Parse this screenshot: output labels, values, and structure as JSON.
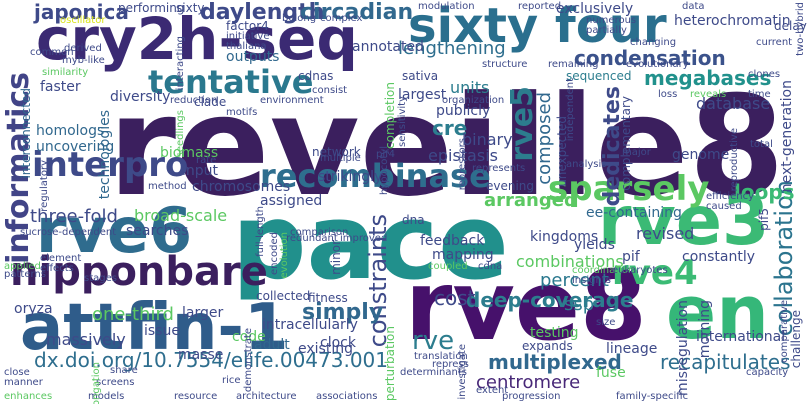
{
  "words": [
    {
      "text": "reveille8",
      "color": "#3b1f5e"
    },
    {
      "text": "pace",
      "color": "#21908c"
    },
    {
      "text": "rve8",
      "color": "#46116b"
    },
    {
      "text": "attfin-1",
      "color": "#2f5c8a"
    },
    {
      "text": "cry2h-seq",
      "color": "#3b2a73"
    },
    {
      "text": "sixty four",
      "color": "#2a6f8e"
    },
    {
      "text": "en",
      "color": "#35b779"
    },
    {
      "text": "rve3",
      "color": "#3bba75"
    },
    {
      "text": "rve6",
      "color": "#2f6c8e"
    },
    {
      "text": "interpro",
      "color": "#3e4a89"
    },
    {
      "text": "nipponbare",
      "color": "#3b1f5e"
    },
    {
      "text": "recombinase",
      "color": "#2e6e8e"
    },
    {
      "text": "tentative",
      "color": "#2a788e"
    },
    {
      "text": "sparsely",
      "color": "#5bc862"
    },
    {
      "text": "informatics",
      "color": "#414487"
    },
    {
      "text": "rve4",
      "color": "#3bbb75"
    },
    {
      "text": "rve5",
      "color": "#2c7d8e"
    },
    {
      "text": "collaboration",
      "color": "#2b748e"
    },
    {
      "text": "condensation",
      "color": "#3b528b"
    },
    {
      "text": "daylength",
      "color": "#3e4a89"
    },
    {
      "text": "circadian",
      "color": "#31688e"
    },
    {
      "text": "japonica",
      "color": "#3e4a89"
    },
    {
      "text": "dx.doi.org/10.7554/elife.00473.001",
      "color": "#2e6e8e"
    },
    {
      "text": "multiplexed",
      "color": "#31688e"
    },
    {
      "text": "deep-coverage",
      "color": "#2c7d8e"
    },
    {
      "text": "centromere",
      "color": "#482878"
    },
    {
      "text": "constraints",
      "color": "#3e4a89"
    },
    {
      "text": "dedicates",
      "color": "#3e4a89"
    },
    {
      "text": "megabases",
      "color": "#21918c"
    },
    {
      "text": "lengthening",
      "color": "#2e6e8e"
    },
    {
      "text": "recapitulates",
      "color": "#2e6e8e"
    },
    {
      "text": "loops",
      "color": "#3bba75"
    },
    {
      "text": "percent",
      "color": "#2a788e"
    },
    {
      "text": "ssp",
      "color": "#2c7d8e"
    },
    {
      "text": "simply",
      "color": "#31688e"
    },
    {
      "text": "one-third",
      "color": "#5bc862"
    },
    {
      "text": "cost",
      "color": "#3e4a89"
    },
    {
      "text": "rve",
      "color": "#2c7d8e"
    },
    {
      "text": "three-fold",
      "color": "#3e4a89"
    },
    {
      "text": "composed",
      "color": "#31688e"
    },
    {
      "text": "cre",
      "color": "#2c7d8e"
    },
    {
      "text": "binary",
      "color": "#3e4a89"
    },
    {
      "text": "epistasis",
      "color": "#3e4a89"
    },
    {
      "text": "units",
      "color": "#2c7d8e"
    },
    {
      "text": "publicly",
      "color": "#3e4a89"
    },
    {
      "text": "largest",
      "color": "#3e4a89"
    },
    {
      "text": "massively",
      "color": "#3e4a89"
    },
    {
      "text": "oryza",
      "color": "#3e4a89"
    },
    {
      "text": "adult",
      "color": "#31688e"
    },
    {
      "text": "existing",
      "color": "#3e4a89"
    },
    {
      "text": "performing",
      "color": "#3e4a89"
    },
    {
      "text": "outputs",
      "color": "#31688e"
    },
    {
      "text": "factor4",
      "color": "#3e4a89"
    },
    {
      "text": "diversity",
      "color": "#3e4a89"
    },
    {
      "text": "faster",
      "color": "#3e4a89"
    },
    {
      "text": "sixty",
      "color": "#3e4a89"
    },
    {
      "text": "sequenced",
      "color": "#2c7d8e"
    },
    {
      "text": "database",
      "color": "#3e4a89"
    },
    {
      "text": "delay",
      "color": "#3e4a89"
    },
    {
      "text": "heterochromatin",
      "color": "#3e4a89"
    },
    {
      "text": "exclusively",
      "color": "#3e4a89"
    },
    {
      "text": "genome",
      "color": "#3e4a89"
    },
    {
      "text": "annotated",
      "color": "#3e4a89"
    },
    {
      "text": "technologies",
      "color": "#31688e"
    },
    {
      "text": "homologs",
      "color": "#31688e"
    },
    {
      "text": "uncovering",
      "color": "#31688e"
    },
    {
      "text": "interconnected",
      "color": "#31688e"
    },
    {
      "text": "biomass",
      "color": "#5bc862"
    },
    {
      "text": "input",
      "color": "#3e4a89"
    },
    {
      "text": "clade",
      "color": "#3e4a89"
    },
    {
      "text": "chromosomes",
      "color": "#3e4a89"
    },
    {
      "text": "assigned",
      "color": "#3e4a89"
    },
    {
      "text": "strikingly",
      "color": "#3e4a89"
    },
    {
      "text": "network",
      "color": "#3e4a89"
    },
    {
      "text": "broad-scale",
      "color": "#5bc862"
    },
    {
      "text": "searches",
      "color": "#3e4a89"
    },
    {
      "text": "arranged",
      "color": "#5bc862"
    },
    {
      "text": "evening",
      "color": "#3e4a89"
    },
    {
      "text": "ee-containing",
      "color": "#31688e"
    },
    {
      "text": "pif5",
      "color": "#3e4a89"
    },
    {
      "text": "combinations",
      "color": "#5bc862"
    },
    {
      "text": "revised",
      "color": "#3e4a89"
    },
    {
      "text": "constantly",
      "color": "#3e4a89"
    },
    {
      "text": "feedback",
      "color": "#3e4a89"
    },
    {
      "text": "mapping",
      "color": "#3e4a89"
    },
    {
      "text": "kingdoms",
      "color": "#3e4a89"
    },
    {
      "text": "yields",
      "color": "#3e4a89"
    },
    {
      "text": "pif",
      "color": "#3e4a89"
    },
    {
      "text": "fitness",
      "color": "#3e4a89"
    },
    {
      "text": "collected",
      "color": "#3e4a89"
    },
    {
      "text": "larger",
      "color": "#3e4a89"
    },
    {
      "text": "issue",
      "color": "#3e4a89"
    },
    {
      "text": "intracellularly",
      "color": "#3e4a89"
    },
    {
      "text": "clock",
      "color": "#3e4a89"
    },
    {
      "text": "code",
      "color": "#5bc862"
    },
    {
      "text": "masse",
      "color": "#3e4a89"
    },
    {
      "text": "testing",
      "color": "#5bc862"
    },
    {
      "text": "expands",
      "color": "#3e4a89"
    },
    {
      "text": "fuse",
      "color": "#5bc862"
    },
    {
      "text": "lineage",
      "color": "#3e4a89"
    },
    {
      "text": "international",
      "color": "#3e4a89"
    },
    {
      "text": "morning",
      "color": "#3e4a89"
    },
    {
      "text": "misregulation",
      "color": "#3e4a89"
    },
    {
      "text": "challenge",
      "color": "#3e4a89"
    },
    {
      "text": "next-generation",
      "color": "#3e4a89"
    },
    {
      "text": "complementary",
      "color": "#3e4a89"
    },
    {
      "text": "minor",
      "color": "#3e4a89"
    },
    {
      "text": "dna",
      "color": "#3e4a89"
    },
    {
      "text": "sativa",
      "color": "#3e4a89"
    },
    {
      "text": "unexpected",
      "color": "#3e4a89"
    },
    {
      "text": "completion",
      "color": "#5bc862"
    },
    {
      "text": "perturbation",
      "color": "#5bc862"
    },
    {
      "text": "oscillator",
      "color": "#d8e219"
    },
    {
      "text": "multiple",
      "color": "#3e4a89"
    },
    {
      "text": "rate",
      "color": "#3e4a89"
    },
    {
      "text": "method",
      "color": "#3e4a89"
    },
    {
      "text": "motifs",
      "color": "#3e4a89"
    },
    {
      "text": "cdnas",
      "color": "#3e4a89"
    },
    {
      "text": "consist",
      "color": "#3e4a89"
    },
    {
      "text": "reduction",
      "color": "#3e4a89"
    },
    {
      "text": "environment",
      "color": "#3e4a89"
    },
    {
      "text": "organization",
      "color": "#3e4a89"
    },
    {
      "text": "structure",
      "color": "#3e4a89"
    },
    {
      "text": "evolutionary",
      "color": "#3e4a89"
    },
    {
      "text": "loss",
      "color": "#3e4a89"
    },
    {
      "text": "reveals",
      "color": "#5bc862"
    },
    {
      "text": "time",
      "color": "#3e4a89"
    },
    {
      "text": "clones",
      "color": "#3e4a89"
    },
    {
      "text": "current",
      "color": "#3e4a89"
    },
    {
      "text": "changing",
      "color": "#3e4a89"
    },
    {
      "text": "data",
      "color": "#3e4a89"
    },
    {
      "text": "common",
      "color": "#3e4a89"
    },
    {
      "text": "derived",
      "color": "#3e4a89"
    },
    {
      "text": "myb-like",
      "color": "#3e4a89"
    },
    {
      "text": "similarity",
      "color": "#5bc862"
    },
    {
      "text": "regulatory",
      "color": "#3e4a89"
    },
    {
      "text": "applied",
      "color": "#5bc862"
    },
    {
      "text": "element",
      "color": "#3e4a89"
    },
    {
      "text": "effects",
      "color": "#3e4a89"
    },
    {
      "text": "patterns",
      "color": "#3e4a89"
    },
    {
      "text": "stages",
      "color": "#3e4a89"
    },
    {
      "text": "sucrose-dependent",
      "color": "#3e4a89"
    },
    {
      "text": "redundant",
      "color": "#3e4a89"
    },
    {
      "text": "improved",
      "color": "#3e4a89"
    },
    {
      "text": "encoded",
      "color": "#3e4a89"
    },
    {
      "text": "evolution",
      "color": "#5bc862"
    },
    {
      "text": "comparison",
      "color": "#3e4a89"
    },
    {
      "text": "coupled",
      "color": "#5bc862"
    },
    {
      "text": "insights",
      "color": "#3e4a89"
    },
    {
      "text": "coordination",
      "color": "#5bc862"
    },
    {
      "text": "eukaryotes",
      "color": "#3e4a89"
    },
    {
      "text": "efficiency",
      "color": "#3e4a89"
    },
    {
      "text": "caused",
      "color": "#3e4a89"
    },
    {
      "text": "cdna",
      "color": "#3e4a89"
    },
    {
      "text": "size",
      "color": "#3e4a89"
    },
    {
      "text": "capacity",
      "color": "#3e4a89"
    },
    {
      "text": "comparative",
      "color": "#3e4a89"
    },
    {
      "text": "family-specific",
      "color": "#3e4a89"
    },
    {
      "text": "extent",
      "color": "#3e4a89"
    },
    {
      "text": "progression",
      "color": "#3e4a89"
    },
    {
      "text": "determinants",
      "color": "#3e4a89"
    },
    {
      "text": "repress",
      "color": "#3e4a89"
    },
    {
      "text": "investigate",
      "color": "#3e4a89"
    },
    {
      "text": "translation",
      "color": "#3e4a89"
    },
    {
      "text": "share",
      "color": "#3e4a89"
    },
    {
      "text": "screens",
      "color": "#3e4a89"
    },
    {
      "text": "rice",
      "color": "#3e4a89"
    },
    {
      "text": "resource",
      "color": "#3e4a89"
    },
    {
      "text": "architecture",
      "color": "#3e4a89"
    },
    {
      "text": "associations",
      "color": "#3e4a89"
    },
    {
      "text": "models",
      "color": "#3e4a89"
    },
    {
      "text": "enhances",
      "color": "#5bc862"
    },
    {
      "text": "close",
      "color": "#3e4a89"
    },
    {
      "text": "manner",
      "color": "#3e4a89"
    },
    {
      "text": "elongation",
      "color": "#5bc862"
    },
    {
      "text": "demonstrate",
      "color": "#3e4a89"
    },
    {
      "text": "full-length",
      "color": "#3e4a89"
    },
    {
      "text": "belong",
      "color": "#3e4a89"
    },
    {
      "text": "complex",
      "color": "#3e4a89"
    },
    {
      "text": "modulation",
      "color": "#3e4a89"
    },
    {
      "text": "reported",
      "color": "#3e4a89"
    },
    {
      "text": "numerous",
      "color": "#3e4a89"
    },
    {
      "text": "partially",
      "color": "#3e4a89"
    },
    {
      "text": "initiative",
      "color": "#3e4a89"
    },
    {
      "text": "thaliana",
      "color": "#3e4a89"
    },
    {
      "text": "interacting",
      "color": "#3e4a89"
    },
    {
      "text": "hypocotyl",
      "color": "#3e4a89"
    },
    {
      "text": "pif4",
      "color": "#3e4a89"
    },
    {
      "text": "represents",
      "color": "#3e4a89"
    },
    {
      "text": "repressors",
      "color": "#3e4a89"
    },
    {
      "text": "major",
      "color": "#3e4a89"
    },
    {
      "text": "analysis",
      "color": "#3e4a89"
    },
    {
      "text": "reproductive",
      "color": "#3e4a89"
    },
    {
      "text": "total",
      "color": "#3e4a89"
    },
    {
      "text": "remaining",
      "color": "#3e4a89"
    },
    {
      "text": "independent",
      "color": "#3e4a89"
    },
    {
      "text": "sensitivity",
      "color": "#3e4a89"
    },
    {
      "text": "seedlings",
      "color": "#5bc862"
    },
    {
      "text": "two-hybrid",
      "color": "#3e4a89"
    }
  ]
}
